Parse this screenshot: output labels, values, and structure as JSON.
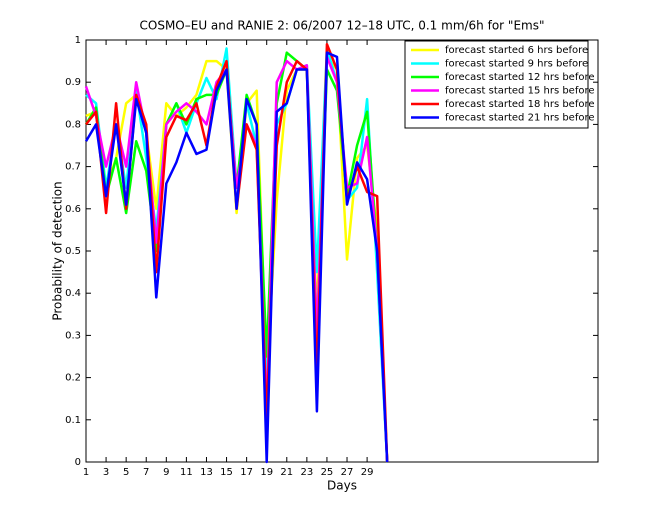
{
  "chart_data": {
    "type": "line",
    "title": "COSMO–EU and RANIE 2: 06/2007 12–18 UTC, 0.1 mm/6h for \"Ems\"",
    "xlabel": "Days",
    "ylabel": "Probability of detection",
    "x": [
      1,
      2,
      3,
      4,
      5,
      6,
      7,
      8,
      9,
      10,
      11,
      12,
      13,
      14,
      15,
      16,
      17,
      18,
      19,
      20,
      21,
      22,
      23,
      24,
      25,
      26,
      27,
      28,
      29,
      30,
      31
    ],
    "xlim": [
      1,
      52
    ],
    "xticks": [
      1,
      3,
      5,
      7,
      9,
      11,
      13,
      15,
      17,
      19,
      21,
      23,
      25,
      27,
      29
    ],
    "ylim": [
      0,
      1
    ],
    "yticks": [
      0,
      0.1,
      0.2,
      0.3,
      0.4,
      0.5,
      0.6,
      0.7,
      0.8,
      0.9,
      1
    ],
    "legend": "upper right",
    "series": [
      {
        "name": "forecast started 6 hrs before",
        "color": "#ffff00",
        "values": [
          0.82,
          0.83,
          0.65,
          0.72,
          0.85,
          0.87,
          0.78,
          0.6,
          0.85,
          0.82,
          0.84,
          0.87,
          0.95,
          0.95,
          0.93,
          0.59,
          0.85,
          0.88,
          0.2,
          0.62,
          0.88,
          0.93,
          0.93,
          0.35,
          0.96,
          0.93,
          0.48,
          0.72,
          0.75,
          0.55,
          0
        ]
      },
      {
        "name": "forecast started 9 hrs before",
        "color": "#00ffff",
        "values": [
          0.87,
          0.85,
          0.65,
          0.8,
          0.65,
          0.88,
          0.72,
          0.55,
          0.8,
          0.85,
          0.78,
          0.85,
          0.91,
          0.86,
          0.98,
          0.65,
          0.85,
          0.75,
          0.2,
          0.8,
          0.85,
          0.93,
          0.94,
          0.45,
          0.98,
          0.9,
          0.62,
          0.65,
          0.86,
          0.45,
          0
        ]
      },
      {
        "name": "forecast started 12 hrs before",
        "color": "#00ff00",
        "values": [
          0.8,
          0.84,
          0.63,
          0.72,
          0.59,
          0.76,
          0.69,
          0.5,
          0.8,
          0.85,
          0.8,
          0.86,
          0.87,
          0.87,
          0.93,
          0.65,
          0.87,
          0.8,
          0.25,
          0.85,
          0.97,
          0.95,
          0.93,
          0.3,
          0.93,
          0.88,
          0.63,
          0.75,
          0.83,
          0.5,
          0
        ]
      },
      {
        "name": "forecast started 15 hrs before",
        "color": "#ff00ff",
        "values": [
          0.89,
          0.82,
          0.7,
          0.8,
          0.7,
          0.9,
          0.78,
          0.52,
          0.8,
          0.83,
          0.85,
          0.83,
          0.8,
          0.9,
          0.93,
          0.65,
          0.8,
          0.75,
          0.12,
          0.9,
          0.95,
          0.93,
          0.94,
          0.3,
          0.96,
          0.9,
          0.65,
          0.66,
          0.77,
          0.5,
          0
        ]
      },
      {
        "name": "forecast started 18 hrs before",
        "color": "#ff0000",
        "values": [
          0.8,
          0.83,
          0.59,
          0.85,
          0.6,
          0.87,
          0.8,
          0.45,
          0.77,
          0.82,
          0.81,
          0.85,
          0.75,
          0.89,
          0.95,
          0.6,
          0.8,
          0.74,
          0.1,
          0.75,
          0.9,
          0.95,
          0.93,
          0.2,
          0.99,
          0.93,
          0.62,
          0.7,
          0.64,
          0.63,
          0
        ]
      },
      {
        "name": "forecast started 21 hrs before",
        "color": "#0000ff",
        "values": [
          0.76,
          0.8,
          0.63,
          0.8,
          0.61,
          0.86,
          0.78,
          0.39,
          0.66,
          0.71,
          0.78,
          0.73,
          0.74,
          0.88,
          0.93,
          0.6,
          0.86,
          0.8,
          0,
          0.83,
          0.85,
          0.93,
          0.93,
          0.12,
          0.97,
          0.96,
          0.61,
          0.71,
          0.67,
          0.5,
          0
        ]
      }
    ]
  }
}
